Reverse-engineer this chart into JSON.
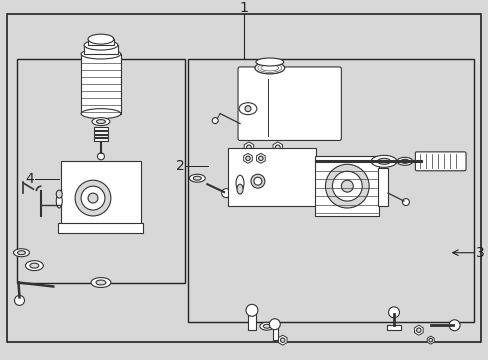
{
  "bg_color": "#d8d8d8",
  "line_color": "#222222",
  "part_edge_color": "#333333",
  "font_size_labels": 10,
  "figsize": [
    4.89,
    3.6
  ],
  "dpi": 100
}
